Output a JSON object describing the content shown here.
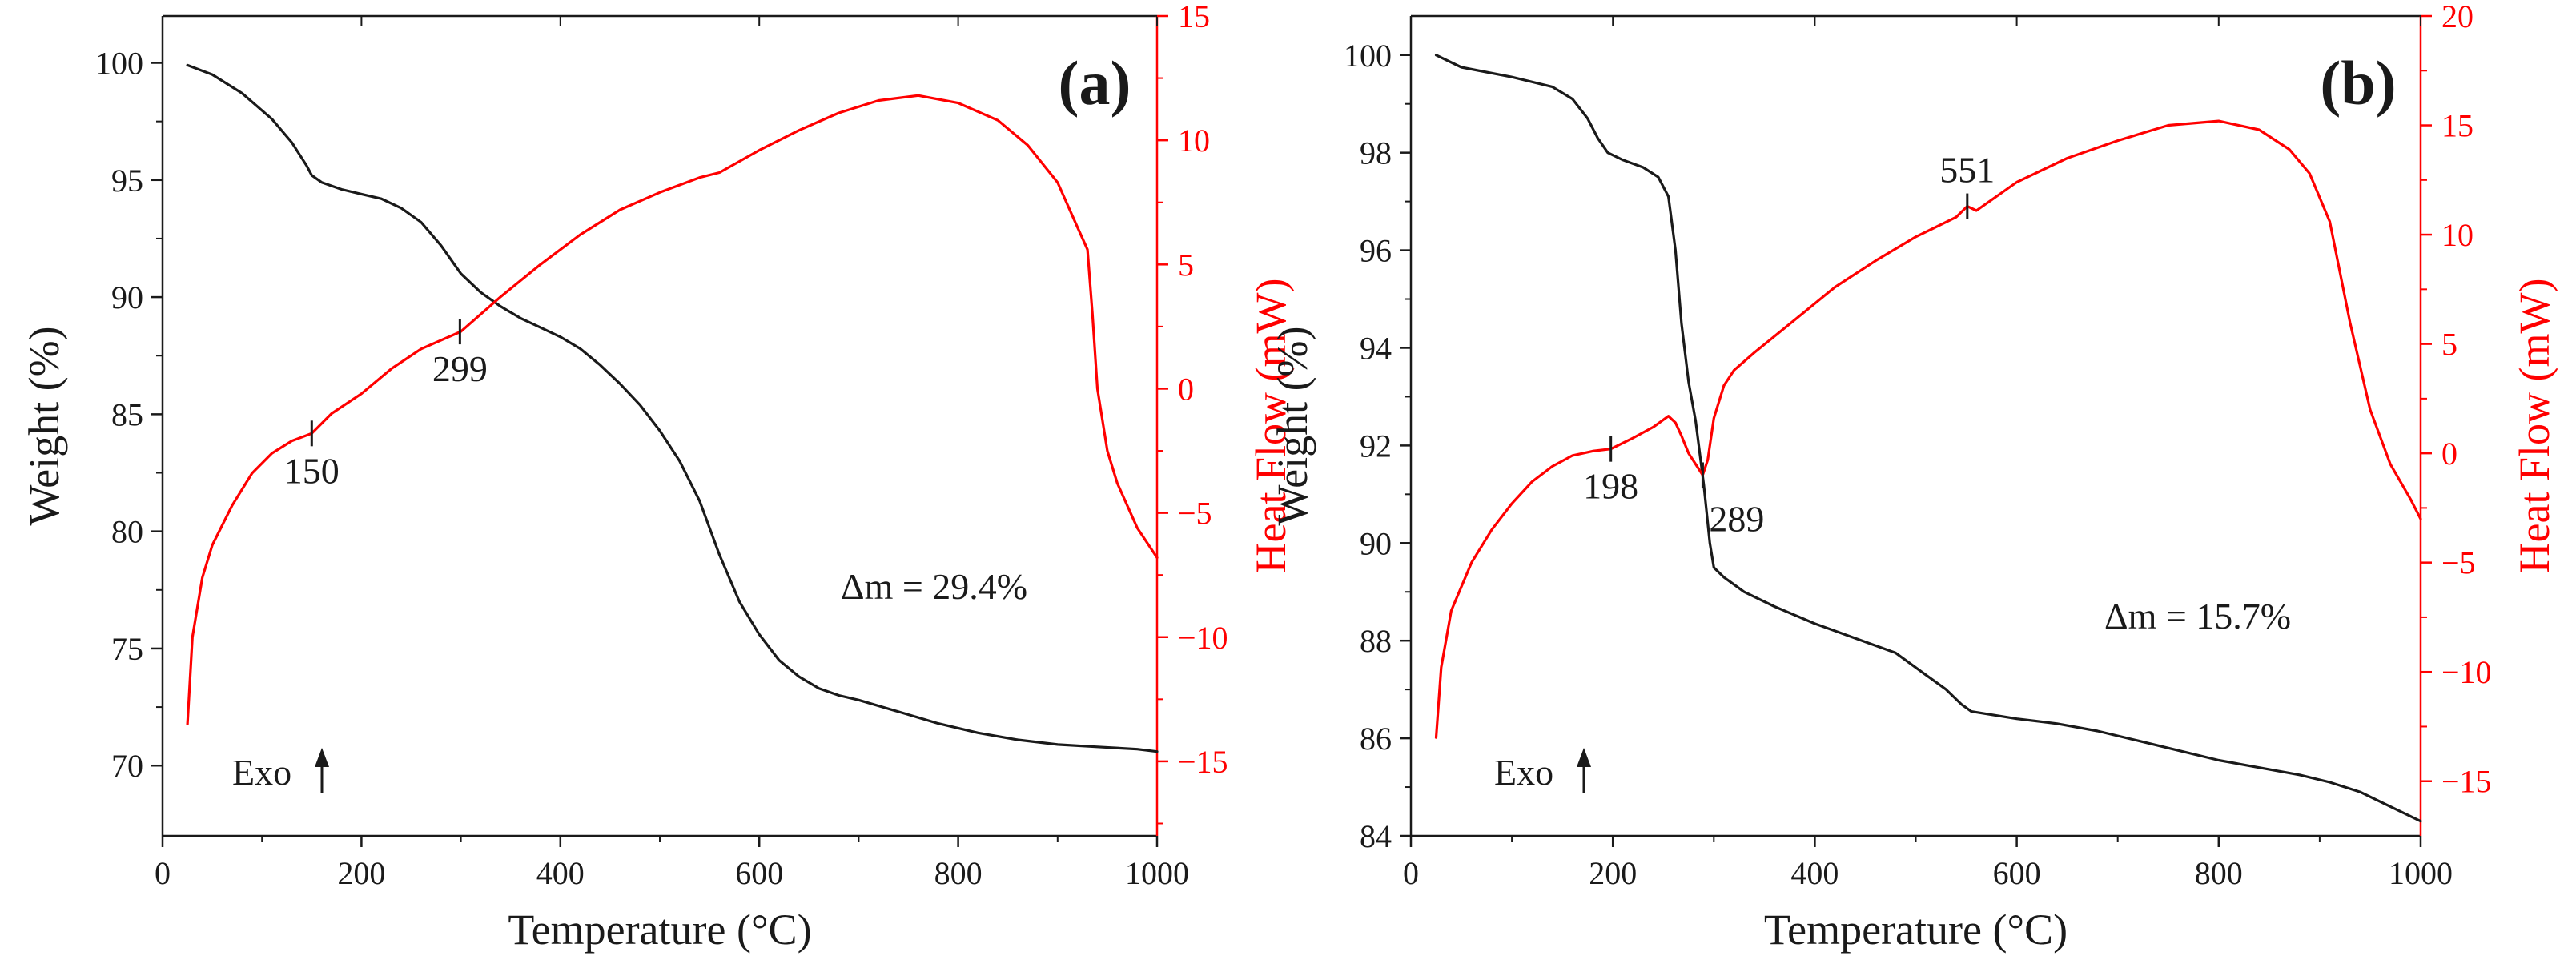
{
  "chart_data": [
    {
      "type": "line",
      "panel_label": "(a)",
      "panel_letter": "a",
      "xlabel": "Temperature (°C)",
      "ylabel_left": "Weight (%)",
      "ylabel_right": "Heat Flow (mW)",
      "xlim": [
        0,
        1000
      ],
      "ylim_left": [
        67,
        102
      ],
      "ylim_right": [
        -18,
        15
      ],
      "x_ticks": [
        0,
        200,
        400,
        600,
        800,
        1000
      ],
      "y_left_ticks": [
        70,
        75,
        80,
        85,
        90,
        95,
        100
      ],
      "y_right_ticks": [
        -15,
        -10,
        -5,
        0,
        5,
        10,
        15
      ],
      "y_right_tick_labels": [
        "−15",
        "−10",
        "−5",
        "0",
        "5",
        "10",
        "15"
      ],
      "colors": {
        "weight": "#1a1a1a",
        "heat_flow": "#ff0000"
      },
      "series": [
        {
          "name": "Weight (%)",
          "axis": "left",
          "color": "#1a1a1a",
          "x": [
            25,
            50,
            80,
            110,
            130,
            145,
            150,
            160,
            180,
            200,
            220,
            240,
            260,
            280,
            300,
            320,
            340,
            360,
            380,
            400,
            420,
            440,
            460,
            480,
            500,
            520,
            540,
            560,
            580,
            600,
            620,
            640,
            660,
            680,
            700,
            740,
            780,
            820,
            860,
            900,
            940,
            980,
            1000
          ],
          "y": [
            99.9,
            99.5,
            98.7,
            97.6,
            96.6,
            95.6,
            95.2,
            94.9,
            94.6,
            94.4,
            94.2,
            93.8,
            93.2,
            92.2,
            91.0,
            90.2,
            89.6,
            89.1,
            88.7,
            88.3,
            87.8,
            87.1,
            86.3,
            85.4,
            84.3,
            83.0,
            81.3,
            79.0,
            77.0,
            75.6,
            74.5,
            73.8,
            73.3,
            73.0,
            72.8,
            72.3,
            71.8,
            71.4,
            71.1,
            70.9,
            70.8,
            70.7,
            70.6
          ]
        },
        {
          "name": "Heat Flow (mW)",
          "axis": "right",
          "color": "#ff0000",
          "x": [
            25,
            30,
            40,
            50,
            70,
            90,
            110,
            130,
            150,
            170,
            200,
            230,
            260,
            300,
            340,
            380,
            420,
            460,
            500,
            540,
            560,
            600,
            640,
            680,
            720,
            760,
            800,
            840,
            870,
            900,
            920,
            930,
            935,
            940,
            950,
            960,
            980,
            1000
          ],
          "y": [
            -13.5,
            -10.0,
            -7.6,
            -6.3,
            -4.7,
            -3.4,
            -2.6,
            -2.1,
            -1.8,
            -1.0,
            -0.2,
            0.8,
            1.6,
            2.3,
            3.7,
            5.0,
            6.2,
            7.2,
            7.9,
            8.5,
            8.7,
            9.6,
            10.4,
            11.1,
            11.6,
            11.8,
            11.5,
            10.8,
            9.8,
            8.3,
            6.5,
            5.6,
            3.0,
            0.0,
            -2.5,
            -3.8,
            -5.6,
            -6.8
          ]
        }
      ],
      "annotations": [
        {
          "text": "150",
          "x": 150,
          "y": -1.8,
          "axis": "right",
          "label_pos": "below"
        },
        {
          "text": "299",
          "x": 299,
          "y": 2.3,
          "axis": "right",
          "label_pos": "below"
        }
      ],
      "delta_m_text": "Δm = 29.4%",
      "exo_text": "Exo"
    },
    {
      "type": "line",
      "panel_label": "(b)",
      "panel_letter": "b",
      "xlabel": "Temperature (°C)",
      "ylabel_left": "Weight (%)",
      "ylabel_right": "Heat Flow (mW)",
      "xlim": [
        0,
        1000
      ],
      "ylim_left": [
        84,
        100.8
      ],
      "ylim_right": [
        -17.5,
        20
      ],
      "x_ticks": [
        0,
        200,
        400,
        600,
        800,
        1000
      ],
      "y_left_ticks": [
        84,
        86,
        88,
        90,
        92,
        94,
        96,
        98,
        100
      ],
      "y_right_ticks": [
        -15,
        -10,
        -5,
        0,
        5,
        10,
        15,
        20
      ],
      "y_right_tick_labels": [
        "−15",
        "−10",
        "−5",
        "0",
        "5",
        "10",
        "15",
        "20"
      ],
      "colors": {
        "weight": "#1a1a1a",
        "heat_flow": "#ff0000"
      },
      "series": [
        {
          "name": "Weight (%)",
          "axis": "left",
          "color": "#1a1a1a",
          "x": [
            25,
            50,
            100,
            140,
            160,
            175,
            185,
            195,
            210,
            230,
            245,
            255,
            262,
            268,
            275,
            282,
            290,
            296,
            300,
            310,
            330,
            360,
            400,
            440,
            480,
            510,
            530,
            545,
            555,
            600,
            640,
            680,
            720,
            760,
            800,
            840,
            880,
            910,
            940,
            970,
            1000
          ],
          "y": [
            100.0,
            99.75,
            99.55,
            99.35,
            99.1,
            98.7,
            98.3,
            98.0,
            97.85,
            97.7,
            97.5,
            97.1,
            96.0,
            94.5,
            93.3,
            92.5,
            91.2,
            90.0,
            89.5,
            89.3,
            89.0,
            88.7,
            88.35,
            88.05,
            87.75,
            87.3,
            87.0,
            86.7,
            86.55,
            86.4,
            86.3,
            86.15,
            85.95,
            85.75,
            85.55,
            85.4,
            85.25,
            85.1,
            84.9,
            84.6,
            84.3
          ]
        },
        {
          "name": "Heat Flow (mW)",
          "axis": "right",
          "color": "#ff0000",
          "x": [
            25,
            30,
            40,
            60,
            80,
            100,
            120,
            140,
            160,
            180,
            198,
            220,
            240,
            255,
            262,
            268,
            275,
            282,
            289,
            294,
            300,
            310,
            320,
            340,
            380,
            420,
            460,
            500,
            540,
            551,
            560,
            600,
            650,
            700,
            750,
            800,
            840,
            870,
            890,
            910,
            930,
            950,
            970,
            990,
            1000
          ],
          "y": [
            -13.0,
            -9.8,
            -7.2,
            -5.0,
            -3.5,
            -2.3,
            -1.3,
            -0.6,
            -0.1,
            0.1,
            0.2,
            0.7,
            1.2,
            1.7,
            1.4,
            0.8,
            0.0,
            -0.5,
            -1.0,
            -0.3,
            1.6,
            3.1,
            3.8,
            4.6,
            6.1,
            7.6,
            8.8,
            9.9,
            10.8,
            11.3,
            11.1,
            12.4,
            13.5,
            14.3,
            15.0,
            15.2,
            14.8,
            13.9,
            12.8,
            10.6,
            6.0,
            2.0,
            -0.5,
            -2.1,
            -3.0
          ]
        }
      ],
      "annotations": [
        {
          "text": "198",
          "x": 198,
          "y": 0.2,
          "axis": "right",
          "label_pos": "below"
        },
        {
          "text": "289",
          "x": 289,
          "y": -1.0,
          "axis": "right",
          "label_pos": "below-right"
        },
        {
          "text": "551",
          "x": 551,
          "y": 11.3,
          "axis": "right",
          "label_pos": "above"
        }
      ],
      "delta_m_text": "Δm = 15.7%",
      "exo_text": "Exo"
    }
  ]
}
